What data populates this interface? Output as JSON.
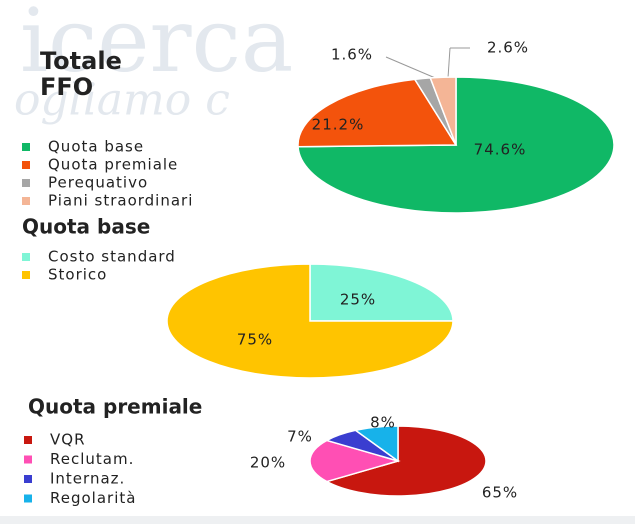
{
  "background_text": [
    "icerca",
    "ogliamo c"
  ],
  "chart_data": [
    {
      "type": "pie",
      "title": "Totale FFO",
      "title_color": "#1f5fbf",
      "categories": [
        "Quota base",
        "Quota premiale",
        "Perequativo",
        "Piani straordinari"
      ],
      "values": [
        74.6,
        21.2,
        1.6,
        2.6
      ],
      "value_labels": [
        "74.6%",
        "21.2%",
        "1.6%",
        "2.6%"
      ],
      "colors": [
        "#10b866",
        "#f3530c",
        "#a6a6a6",
        "#f4b596"
      ]
    },
    {
      "type": "pie",
      "title": "Quota base",
      "title_color": "#0a9e4a",
      "categories": [
        "Costo standard",
        "Storico"
      ],
      "values": [
        25,
        75
      ],
      "value_labels": [
        "25%",
        "75%"
      ],
      "colors": [
        "#7ff5d6",
        "#ffc400"
      ]
    },
    {
      "type": "pie",
      "title": "Quota premiale",
      "title_color": "#e0101e",
      "categories": [
        "VQR",
        "Reclutam.",
        "Internaz.",
        "Regolarità"
      ],
      "values": [
        65,
        20,
        7,
        8
      ],
      "value_labels": [
        "65%",
        "20%",
        "7%",
        "8%"
      ],
      "colors": [
        "#c8170f",
        "#ff4fb4",
        "#3a3ed0",
        "#17b2ea"
      ]
    }
  ]
}
